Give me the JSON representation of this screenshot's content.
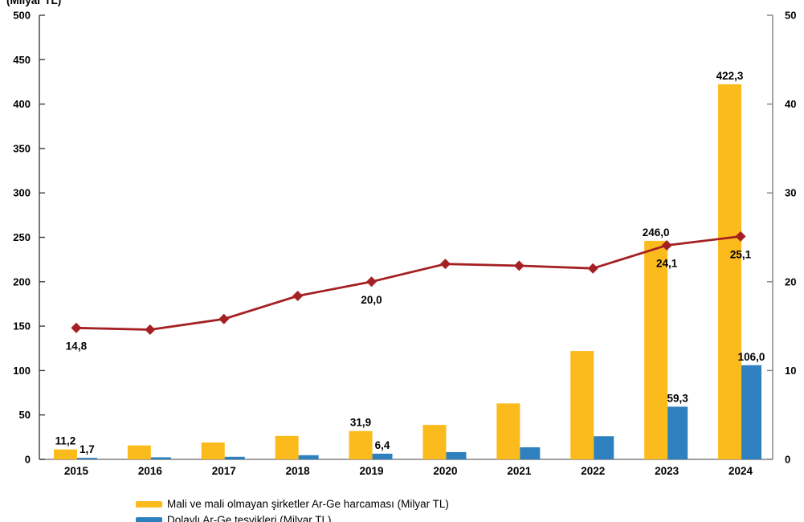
{
  "chart_data": {
    "type": "bar+line",
    "categories": [
      "2015",
      "2016",
      "2017",
      "2018",
      "2019",
      "2020",
      "2021",
      "2022",
      "2023",
      "2024"
    ],
    "left_axis": {
      "title": "(Milyar TL)",
      "min": 0,
      "max": 500,
      "step": 50,
      "tick_labels": [
        "0",
        "50",
        "100",
        "150",
        "200",
        "250",
        "300",
        "350",
        "400",
        "450",
        "500"
      ]
    },
    "right_axis": {
      "min": 0,
      "max": 50,
      "step": 10,
      "tick_labels": [
        "0",
        "10",
        "20",
        "30",
        "40",
        "50"
      ]
    },
    "grid": "off",
    "legend_position": "bottom-left",
    "series": [
      {
        "key": "arge-harcamasi",
        "name": "Mali ve mali olmayan şirketler Ar-Ge harcaması (Milyar TL)",
        "type": "bar",
        "axis": "left",
        "color": "#FCBB1C",
        "values": [
          11.2,
          15.7,
          19.0,
          26.4,
          31.9,
          38.8,
          63.0,
          122.0,
          246.0,
          422.3
        ],
        "labels": {
          "0": "11,2",
          "4": "31,9",
          "8": "246,0",
          "9": "422,3"
        }
      },
      {
        "key": "dolayli-tesvikler",
        "name": "Dolaylı Ar-Ge teşvikleri (Milyar TL)",
        "type": "bar",
        "axis": "left",
        "color": "#2E80BF",
        "values": [
          1.7,
          2.3,
          2.9,
          4.7,
          6.4,
          8.2,
          13.6,
          26.0,
          59.3,
          106.0
        ],
        "labels": {
          "0": "1,7",
          "4": "6,4",
          "8": "59,3",
          "9": "106,0"
        }
      },
      {
        "key": "oran-line",
        "type": "line",
        "axis": "right",
        "color": "#A52022",
        "marker": "diamond",
        "values": [
          14.8,
          14.6,
          15.8,
          18.4,
          20.0,
          22.0,
          21.8,
          21.5,
          24.1,
          25.1
        ],
        "labels": {
          "0": "14,8",
          "4": "20,0",
          "8": "24,1",
          "9": "25,1"
        }
      }
    ]
  },
  "legend": {
    "items": [
      {
        "label": "Mali ve mali olmayan şirketler Ar-Ge harcaması (Milyar TL)",
        "color": "#FCBB1C"
      },
      {
        "label": "Dolaylı Ar-Ge teşvikleri (Milyar TL)",
        "color": "#2E80BF"
      }
    ]
  }
}
